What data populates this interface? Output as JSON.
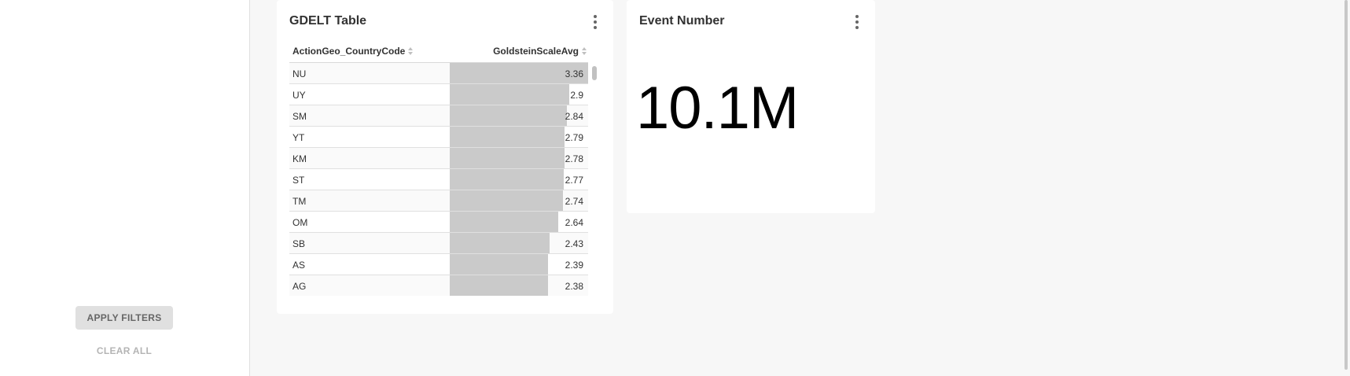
{
  "filters": {
    "apply_label": "APPLY FILTERS",
    "clear_label": "CLEAR ALL"
  },
  "table_chart": {
    "title": "GDELT Table",
    "menu_icon": "kebab-vertical-icon",
    "columns": [
      "ActionGeo_CountryCode",
      "GoldsteinScaleAvg"
    ],
    "sort_icon": "sort-icon",
    "bar_color": "#cacaca",
    "rows": [
      {
        "code": "NU",
        "value": "3.36"
      },
      {
        "code": "UY",
        "value": "2.9"
      },
      {
        "code": "SM",
        "value": "2.84"
      },
      {
        "code": "YT",
        "value": "2.79"
      },
      {
        "code": "KM",
        "value": "2.78"
      },
      {
        "code": "ST",
        "value": "2.77"
      },
      {
        "code": "TM",
        "value": "2.74"
      },
      {
        "code": "OM",
        "value": "2.64"
      },
      {
        "code": "SB",
        "value": "2.43"
      },
      {
        "code": "AS",
        "value": "2.39"
      },
      {
        "code": "AG",
        "value": "2.38"
      }
    ]
  },
  "number_chart": {
    "title": "Event Number",
    "menu_icon": "kebab-vertical-icon",
    "value": "10.1M"
  }
}
